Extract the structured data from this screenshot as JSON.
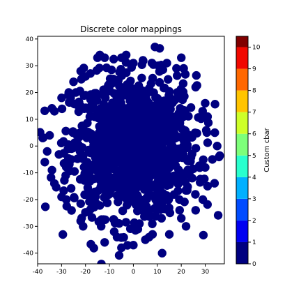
{
  "chart_data": {
    "type": "scatter",
    "title": "Discrete color mappings",
    "xlabel": "",
    "ylabel": "",
    "xlim": [
      -40,
      38
    ],
    "ylim": [
      -44,
      41
    ],
    "xticks": [
      -40,
      -30,
      -20,
      -10,
      0,
      10,
      20,
      30
    ],
    "yticks": [
      -40,
      -30,
      -20,
      -10,
      0,
      10,
      20,
      30,
      40
    ],
    "grid": false,
    "marker_color": "#000080",
    "distribution": {
      "shape": "roughly circular cloud of points centered near (0, 0)",
      "approx_extent_x": [
        -37,
        36
      ],
      "approx_extent_y": [
        -40,
        37
      ],
      "points_estimated": true
    },
    "colorbar": {
      "label": "Custom cbar",
      "min": 0,
      "max": 10,
      "ticks": [
        0,
        1,
        2,
        3,
        4,
        5,
        6,
        7,
        8,
        9,
        10
      ],
      "bins": [
        {
          "from": 0,
          "to": 1,
          "color": "#000080"
        },
        {
          "from": 1,
          "to": 2,
          "color": "#0000f1"
        },
        {
          "from": 2,
          "to": 3,
          "color": "#004cff"
        },
        {
          "from": 3,
          "to": 4,
          "color": "#00b0ff"
        },
        {
          "from": 4,
          "to": 5,
          "color": "#29ffce"
        },
        {
          "from": 5,
          "to": 6,
          "color": "#7dff7a"
        },
        {
          "from": 6,
          "to": 7,
          "color": "#ceff29"
        },
        {
          "from": 7,
          "to": 8,
          "color": "#ffc400"
        },
        {
          "from": 8,
          "to": 9,
          "color": "#ff6800"
        },
        {
          "from": 9,
          "to": 10,
          "color": "#f10800"
        },
        {
          "from": 10,
          "to": 10.5,
          "color": "#800000"
        }
      ]
    },
    "outlier_points": [
      [
        -3,
        34
      ],
      [
        -5,
        33
      ],
      [
        9,
        37
      ],
      [
        11,
        36.5
      ],
      [
        0,
        31
      ],
      [
        4,
        32
      ],
      [
        -12,
        33
      ],
      [
        -14,
        34
      ],
      [
        -25,
        24
      ],
      [
        -30,
        18
      ],
      [
        -27,
        20
      ],
      [
        -33,
        13
      ],
      [
        -35,
        4
      ],
      [
        -36,
        -2
      ],
      [
        -37,
        -6
      ],
      [
        -34,
        -9
      ],
      [
        -33,
        -14
      ],
      [
        -30,
        -19
      ],
      [
        -28,
        -20
      ],
      [
        -22,
        -28
      ],
      [
        -21,
        -30
      ],
      [
        -12,
        -36
      ],
      [
        -5,
        -38
      ],
      [
        0,
        -37
      ],
      [
        5,
        -35
      ],
      [
        12,
        -40
      ],
      [
        15,
        -33
      ],
      [
        20,
        -27
      ],
      [
        26,
        -24
      ],
      [
        29,
        -20
      ],
      [
        31,
        -15
      ],
      [
        30,
        -8
      ],
      [
        33,
        -5
      ],
      [
        35,
        0
      ],
      [
        34,
        5
      ],
      [
        31,
        11
      ],
      [
        30,
        16
      ],
      [
        26,
        22
      ],
      [
        21,
        29
      ],
      [
        18,
        29
      ],
      [
        14,
        31
      ],
      [
        20,
        33
      ],
      [
        -15,
        33
      ],
      [
        -20,
        26
      ],
      [
        -22,
        28
      ],
      [
        -24,
        20
      ],
      [
        -16,
        -22
      ],
      [
        -8,
        -32
      ],
      [
        8,
        -33
      ],
      [
        22,
        -30
      ]
    ]
  }
}
